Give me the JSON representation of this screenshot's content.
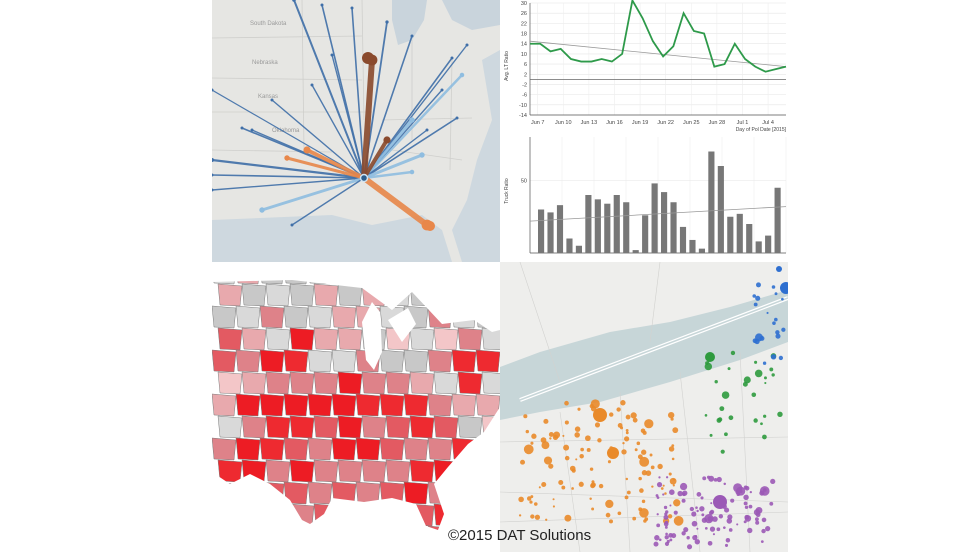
{
  "flow_map": {
    "state_labels": [
      "South Dakota",
      "Nebraska",
      "Kansas",
      "Oklahoma"
    ],
    "colors": {
      "blue": "#3f6fa8",
      "light_blue": "#8fbde0",
      "brown": "#8a4a2d",
      "orange": "#e8874a"
    }
  },
  "chart_data": [
    {
      "type": "line",
      "title": "",
      "ylabel": "Avg. LT Ratio",
      "xlabel": "Day of Pol Date [2015]",
      "x_ticks": [
        "Jun 7",
        "Jun 10",
        "Jun 13",
        "Jun 16",
        "Jun 19",
        "Jun 22",
        "Jun 25",
        "Jun 28",
        "Jul 1",
        "Jul 4"
      ],
      "y_ticks": [
        "30",
        "26",
        "22",
        "18",
        "14",
        "10",
        "6",
        "2",
        "-2",
        "-6",
        "-10",
        "-14"
      ],
      "ylim": [
        -14,
        30
      ],
      "series": [
        {
          "values": [
            14,
            14,
            11,
            12,
            8,
            7,
            7,
            8,
            7,
            10,
            31,
            24,
            15,
            9,
            13,
            26,
            19,
            18,
            5,
            6,
            14,
            8,
            5,
            3,
            4,
            5
          ]
        }
      ],
      "trend": [
        15,
        5
      ],
      "color": "#2e9a4a"
    },
    {
      "type": "bar",
      "ylabel": "Truck Ratio",
      "y_ticks": [
        "50"
      ],
      "ylim": [
        0,
        80
      ],
      "values": [
        30,
        28,
        33,
        10,
        5,
        40,
        37,
        34,
        40,
        35,
        2,
        26,
        48,
        42,
        35,
        18,
        9,
        3,
        70,
        60,
        25,
        27,
        20,
        8,
        12,
        45
      ],
      "trend": [
        22,
        32
      ],
      "color": "#777777"
    }
  ],
  "copyright": "©2015 DAT Solutions"
}
